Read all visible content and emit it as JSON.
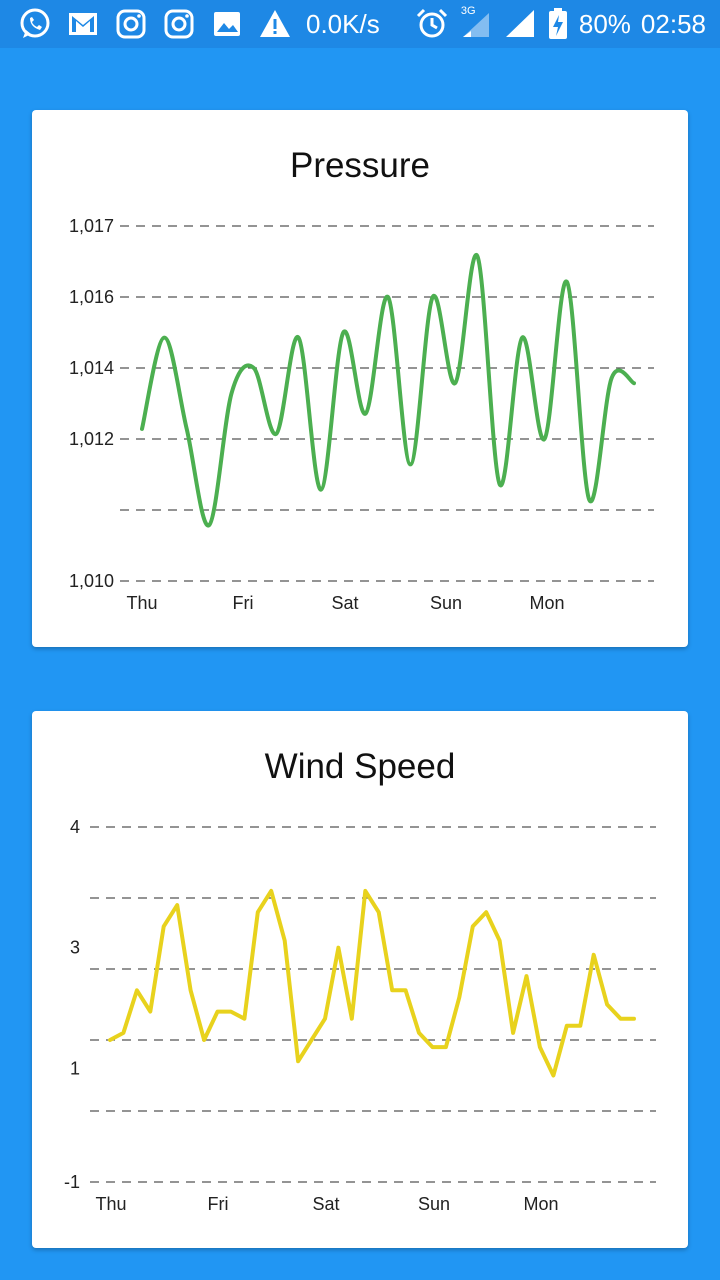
{
  "status_bar": {
    "speed": "0.0K/s",
    "network": "3G",
    "battery": "80%",
    "time": "02:58",
    "icons": [
      "whatsapp-icon",
      "gmail-icon",
      "instagram-icon",
      "instagram-icon",
      "gallery-icon",
      "warning-icon",
      "alarm-icon",
      "signal-3g-icon",
      "signal-icon",
      "battery-charging-icon"
    ]
  },
  "colors": {
    "background": "#2196F3",
    "status_bar": "#1E88E5",
    "pressure_line": "#4CAF50",
    "wind_line": "#E8D21D"
  },
  "cards": [
    {
      "title": "Pressure",
      "chart_data": {
        "type": "line",
        "title": "Pressure",
        "xlabel": "",
        "ylabel": "",
        "y_tick_labels": [
          "1,017",
          "1,016",
          "1,014",
          "1,012",
          "1,010"
        ],
        "x_tick_labels": [
          "Thu",
          "Fri",
          "Sat",
          "Sun",
          "Mon"
        ],
        "grid": true,
        "smooth": true,
        "series": [
          {
            "values": [
              1013.0,
              1014.8,
              1013.0,
              1011.1,
              1013.7,
              1014.2,
              1012.9,
              1014.8,
              1011.8,
              1014.9,
              1013.3,
              1015.6,
              1012.3,
              1015.6,
              1013.9,
              1016.4,
              1011.9,
              1014.8,
              1012.8,
              1015.9,
              1011.6,
              1014.0,
              1013.9
            ]
          }
        ]
      }
    },
    {
      "title": "Wind Speed",
      "chart_data": {
        "type": "line",
        "title": "Wind Speed",
        "xlabel": "",
        "ylabel": "",
        "y_tick_labels": [
          "4",
          "3",
          "1",
          "-1"
        ],
        "x_tick_labels": [
          "Thu",
          "Fri",
          "Sat",
          "Sun",
          "Mon"
        ],
        "grid": true,
        "smooth": false,
        "series": [
          {
            "values": [
              1.0,
              1.1,
              1.7,
              1.4,
              2.6,
              2.9,
              1.7,
              1.0,
              1.4,
              1.4,
              1.3,
              2.8,
              3.1,
              2.4,
              0.7,
              1.0,
              1.3,
              2.3,
              1.3,
              3.1,
              2.8,
              1.7,
              1.7,
              1.1,
              0.9,
              0.9,
              1.6,
              2.6,
              2.8,
              2.4,
              1.1,
              1.9,
              0.9,
              0.5,
              1.2,
              1.2,
              2.2,
              1.5,
              1.3,
              1.3
            ]
          }
        ]
      }
    }
  ]
}
